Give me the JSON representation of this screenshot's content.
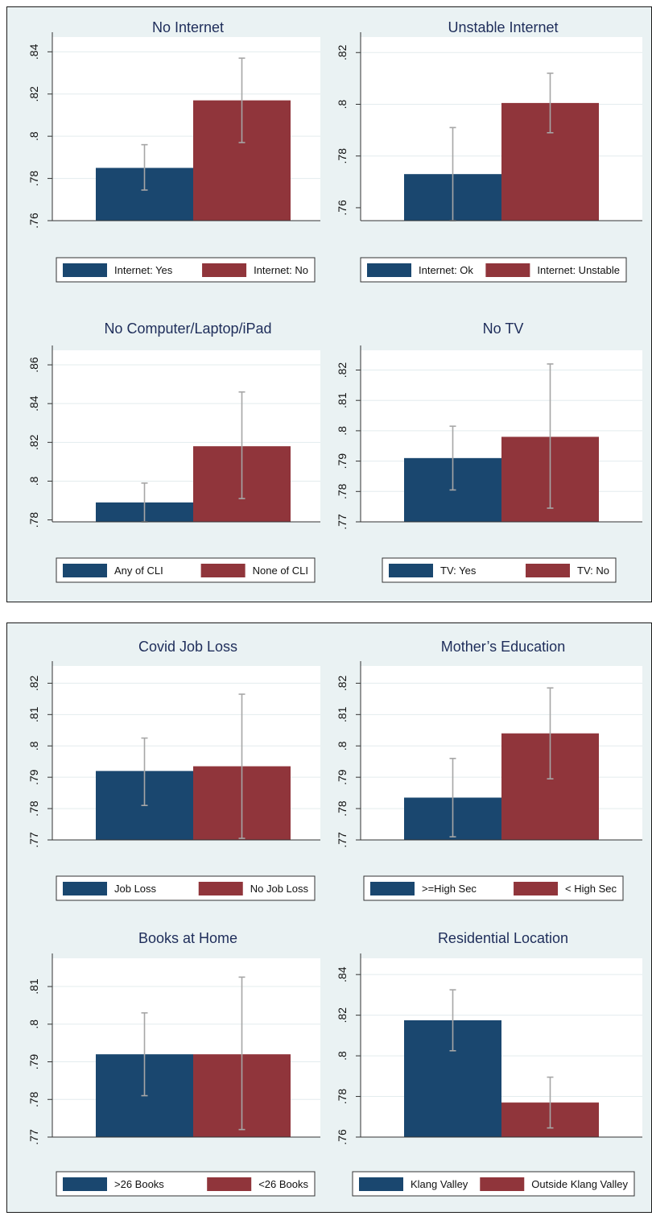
{
  "colors": {
    "background": "#eaf2f3",
    "series_1": "#1a476f",
    "series_2": "#90353b",
    "error_bar": "#a6a6a6",
    "title": "#1e2d5a"
  },
  "chart_data": [
    {
      "type": "bar",
      "title": "No Internet",
      "ylim": [
        0.76,
        0.847
      ],
      "yticks": [
        0.76,
        0.78,
        0.8,
        0.82,
        0.84
      ],
      "yticklabels": [
        ".76",
        ".78",
        ".8",
        ".82",
        ".84"
      ],
      "legend_position": "bottom",
      "series": [
        {
          "name": "Internet: Yes",
          "value": 0.785,
          "ci": [
            0.7745,
            0.796
          ]
        },
        {
          "name": "Internet: No",
          "value": 0.817,
          "ci": [
            0.797,
            0.837
          ]
        }
      ]
    },
    {
      "type": "bar",
      "title": "Unstable Internet",
      "ylim": [
        0.755,
        0.826
      ],
      "yticks": [
        0.76,
        0.78,
        0.8,
        0.82
      ],
      "yticklabels": [
        ".76",
        ".78",
        ".8",
        ".82"
      ],
      "legend_position": "bottom",
      "series": [
        {
          "name": "Internet: Ok",
          "value": 0.773,
          "ci": [
            0.755,
            0.791
          ]
        },
        {
          "name": "Internet: Unstable",
          "value": 0.8005,
          "ci": [
            0.789,
            0.812
          ]
        }
      ]
    },
    {
      "type": "bar",
      "title": "No Computer/Laptop/iPad",
      "ylim": [
        0.779,
        0.8675
      ],
      "yticks": [
        0.78,
        0.8,
        0.82,
        0.84,
        0.86
      ],
      "yticklabels": [
        ".78",
        ".8",
        ".82",
        ".84",
        ".86"
      ],
      "legend_position": "bottom",
      "series": [
        {
          "name": "Any of CLI",
          "value": 0.789,
          "ci": [
            0.779,
            0.799
          ]
        },
        {
          "name": "None of CLI",
          "value": 0.818,
          "ci": [
            0.791,
            0.846
          ]
        }
      ]
    },
    {
      "type": "bar",
      "title": "No TV",
      "ylim": [
        0.77,
        0.8265
      ],
      "yticks": [
        0.77,
        0.78,
        0.79,
        0.8,
        0.81,
        0.82
      ],
      "yticklabels": [
        ".77",
        ".78",
        ".79",
        ".8",
        ".81",
        ".82"
      ],
      "legend_position": "bottom",
      "series": [
        {
          "name": "TV: Yes",
          "value": 0.791,
          "ci": [
            0.7805,
            0.8015
          ]
        },
        {
          "name": "TV: No",
          "value": 0.798,
          "ci": [
            0.7745,
            0.822
          ]
        }
      ]
    },
    {
      "type": "bar",
      "title": "Covid Job Loss",
      "ylim": [
        0.77,
        0.8255
      ],
      "yticks": [
        0.77,
        0.78,
        0.79,
        0.8,
        0.81,
        0.82
      ],
      "yticklabels": [
        ".77",
        ".78",
        ".79",
        ".8",
        ".81",
        ".82"
      ],
      "legend_position": "bottom",
      "series": [
        {
          "name": "Job Loss",
          "value": 0.792,
          "ci": [
            0.781,
            0.8025
          ]
        },
        {
          "name": "No Job Loss",
          "value": 0.7935,
          "ci": [
            0.7705,
            0.8165
          ]
        }
      ]
    },
    {
      "type": "bar",
      "title": "Mother’s Education",
      "ylim": [
        0.77,
        0.8255
      ],
      "yticks": [
        0.77,
        0.78,
        0.79,
        0.8,
        0.81,
        0.82
      ],
      "yticklabels": [
        ".77",
        ".78",
        ".79",
        ".8",
        ".81",
        ".82"
      ],
      "legend_position": "bottom",
      "series": [
        {
          "name": ">=High Sec",
          "value": 0.7835,
          "ci": [
            0.771,
            0.796
          ]
        },
        {
          "name": "< High Sec",
          "value": 0.804,
          "ci": [
            0.7895,
            0.8185
          ]
        }
      ]
    },
    {
      "type": "bar",
      "title": "Books at Home",
      "ylim": [
        0.77,
        0.8175
      ],
      "yticks": [
        0.77,
        0.78,
        0.79,
        0.8,
        0.81
      ],
      "yticklabels": [
        ".77",
        ".78",
        ".79",
        ".8",
        ".81"
      ],
      "legend_position": "bottom",
      "series": [
        {
          "name": ">26 Books",
          "value": 0.792,
          "ci": [
            0.781,
            0.803
          ]
        },
        {
          "name": "<26 Books",
          "value": 0.792,
          "ci": [
            0.772,
            0.8125
          ]
        }
      ]
    },
    {
      "type": "bar",
      "title": "Residential Location",
      "ylim": [
        0.76,
        0.848
      ],
      "yticks": [
        0.76,
        0.78,
        0.8,
        0.82,
        0.84
      ],
      "yticklabels": [
        ".76",
        ".78",
        ".8",
        ".82",
        ".84"
      ],
      "legend_position": "bottom",
      "series": [
        {
          "name": "Klang Valley",
          "value": 0.8175,
          "ci": [
            0.8025,
            0.8325
          ]
        },
        {
          "name": "Outside Klang Valley",
          "value": 0.777,
          "ci": [
            0.7645,
            0.7895
          ]
        }
      ]
    }
  ]
}
